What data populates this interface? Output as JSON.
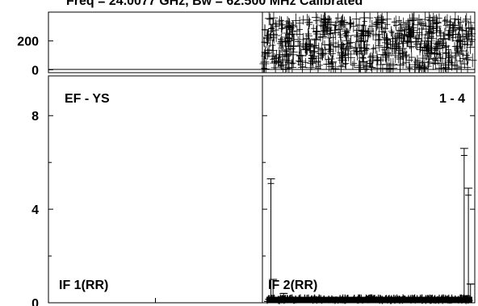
{
  "chart_data": {
    "type": "scatter",
    "title": "Freq = 24.0077 GHz, Bw = 62.500 MHz  Calibrated",
    "baseline": "EF - YS",
    "stokes": "1 - 4",
    "phase_panel": {
      "yticks": [
        0,
        200
      ],
      "ylim": [
        -20,
        400
      ]
    },
    "amp_panel": {
      "yticks": [
        0,
        4,
        8
      ],
      "ylim": [
        0,
        9.7
      ]
    },
    "panels": [
      {
        "label": "IF 1(RR)",
        "points": []
      },
      {
        "label": "IF 2(RR)",
        "phase_points": "dense scatter spanning roughly 0 to 360 degrees across the panel",
        "amp_points": [
          {
            "x": 0.04,
            "y": 5.3,
            "yerr_low": 0.2,
            "yerr_high": 5.3
          },
          {
            "x": 0.05,
            "y": 1.0,
            "yerr_low": 0.0,
            "yerr_high": 1.8
          },
          {
            "x": 0.1,
            "y": 0.4,
            "yerr_low": 0.0,
            "yerr_high": 0.9
          },
          {
            "x": 0.95,
            "y": 6.6,
            "yerr_low": 0.3,
            "yerr_high": 6.6
          },
          {
            "x": 0.97,
            "y": 4.9,
            "yerr_low": 0.3,
            "yerr_high": 4.9
          },
          {
            "x": 0.98,
            "y": 0.8,
            "yerr_low": 0.0,
            "yerr_high": 1.6
          },
          {
            "x": 0.96,
            "y": 0.3,
            "yerr_low": 0.0,
            "yerr_high": 0.8
          }
        ],
        "baseline_level": 0.05
      }
    ]
  }
}
